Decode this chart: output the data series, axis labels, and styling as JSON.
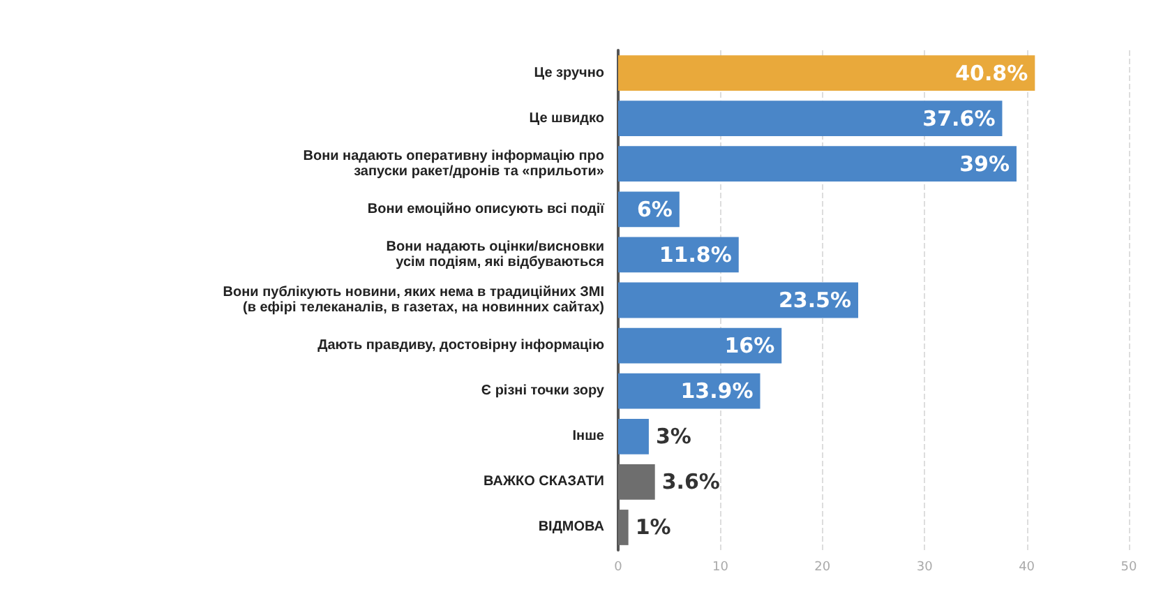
{
  "chart_data": {
    "type": "bar",
    "orientation": "horizontal",
    "categories": [
      "Це зручно",
      "Це швидко",
      "Вони надають оперативну інформацію про\nзапуски ракет/дронів та «прильоти»",
      "Вони емоційно описують всі події",
      "Вони надають оцінки/висновки\nусім подіям, які відбуваються",
      "Вони публікують новини, яких нема в традиційних ЗМІ\n(в ефірі телеканалів, в газетах, на новинних сайтах)",
      "Дають правдиву, достовірну інформацію",
      "Є різні точки зору",
      "Інше",
      "ВАЖКО СКАЗАТИ",
      "ВІДМОВА"
    ],
    "values": [
      40.8,
      37.6,
      39,
      6,
      11.8,
      23.5,
      16,
      13.9,
      3,
      3.6,
      1
    ],
    "value_labels": [
      "40.8%",
      "37.6%",
      "39%",
      "6%",
      "11.8%",
      "23.5%",
      "16%",
      "13.9%",
      "3%",
      "3.6%",
      "1%"
    ],
    "colors": [
      "#e9a93b",
      "#4a86c8",
      "#4a86c8",
      "#4a86c8",
      "#4a86c8",
      "#4a86c8",
      "#4a86c8",
      "#4a86c8",
      "#4a86c8",
      "#6e6e6e",
      "#6e6e6e"
    ],
    "xlim": [
      0,
      50
    ],
    "xticks": [
      0,
      10,
      20,
      30,
      40,
      50
    ],
    "grid": "x"
  }
}
